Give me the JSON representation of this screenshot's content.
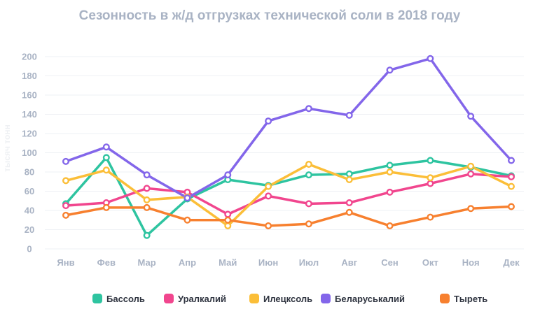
{
  "title": "Сезонность в ж/д отгрузках технической соли в 2018 году",
  "chart_data": {
    "type": "line",
    "title": "Сезонность в ж/д отгрузках технической соли в 2018 году",
    "ylabel": "тысяч тонн",
    "xlabel": "",
    "ylim": [
      0,
      200
    ],
    "yticks": [
      0,
      20,
      40,
      60,
      80,
      100,
      120,
      140,
      160,
      180,
      200
    ],
    "grid": true,
    "legend_position": "bottom",
    "categories": [
      "Янв",
      "Фев",
      "Мар",
      "Апр",
      "Май",
      "Июн",
      "Июл",
      "Авг",
      "Сен",
      "Окт",
      "Ноя",
      "Дек"
    ],
    "series": [
      {
        "name": "Бассоль",
        "color": "#2ec4a0",
        "values": [
          47,
          95,
          14,
          52,
          72,
          66,
          77,
          78,
          87,
          92,
          85,
          76
        ]
      },
      {
        "name": "Уралкалий",
        "color": "#f1468e",
        "values": [
          45,
          48,
          63,
          59,
          36,
          55,
          47,
          48,
          59,
          68,
          78,
          75
        ]
      },
      {
        "name": "Илецксоль",
        "color": "#fbbe38",
        "values": [
          71,
          82,
          51,
          54,
          24,
          65,
          88,
          72,
          80,
          74,
          86,
          65
        ]
      },
      {
        "name": "Беларуськалий",
        "color": "#8366ea",
        "values": [
          91,
          106,
          77,
          53,
          77,
          133,
          146,
          139,
          186,
          198,
          138,
          92
        ]
      },
      {
        "name": "Тыреть",
        "color": "#f7802f",
        "values": [
          35,
          43,
          43,
          30,
          30,
          24,
          26,
          38,
          24,
          33,
          42,
          44
        ]
      }
    ]
  }
}
